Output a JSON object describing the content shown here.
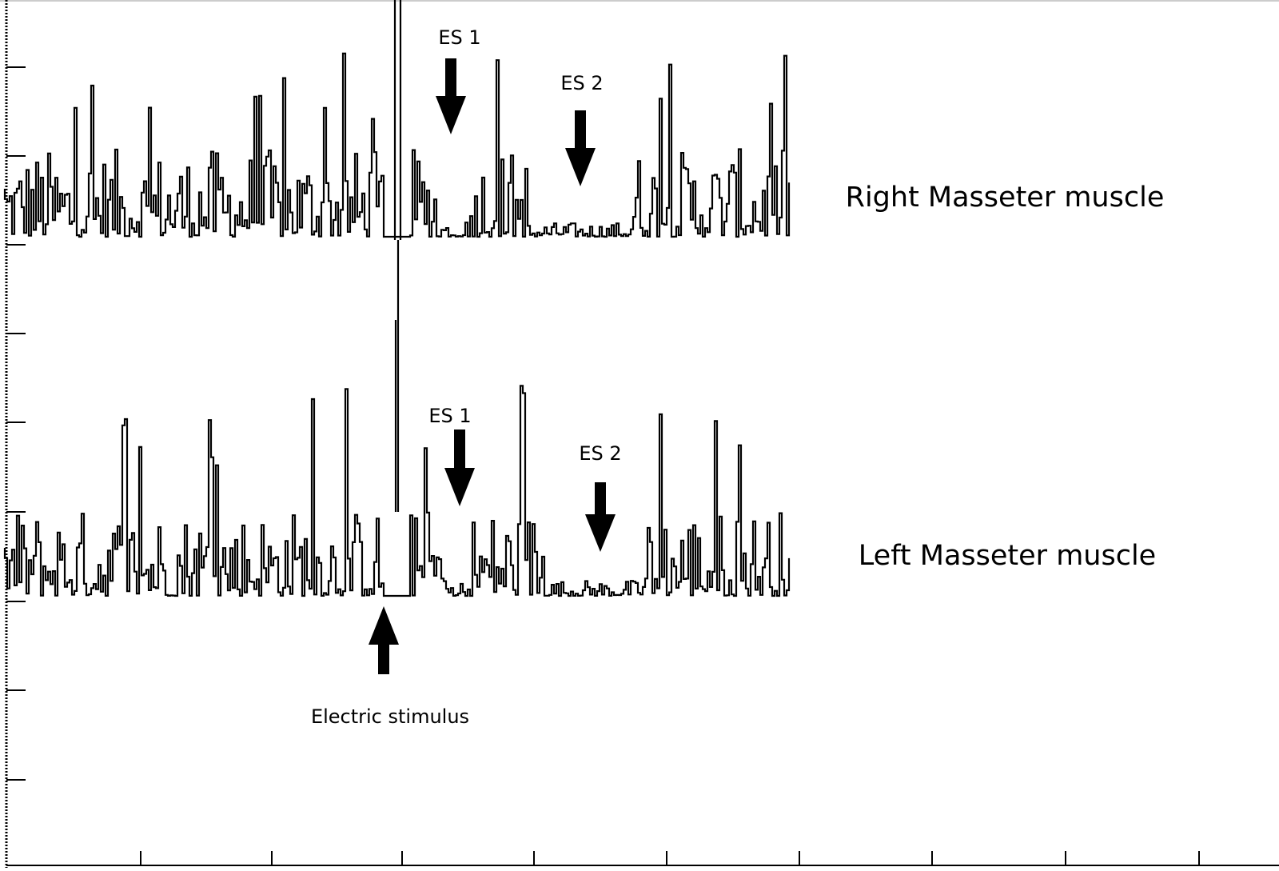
{
  "traces": [
    {
      "label": "Right Masseter muscle",
      "markers": [
        {
          "label": "ES 1"
        },
        {
          "label": "ES 2"
        }
      ]
    },
    {
      "label": "Left Masseter muscle",
      "markers": [
        {
          "label": "ES 1"
        },
        {
          "label": "ES 2"
        }
      ]
    }
  ],
  "stimulus": {
    "label": "Electric stimulus"
  }
}
